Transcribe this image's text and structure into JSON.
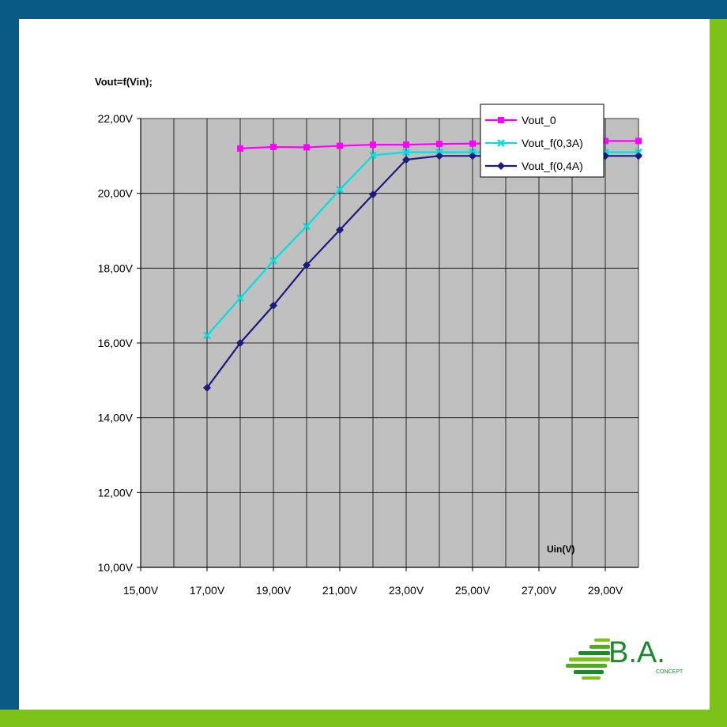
{
  "frame": {
    "left_color": "#0a5a86",
    "bottom_color": "#7cc219"
  },
  "chart_data": {
    "type": "line",
    "title": "Vout=f(Vin);",
    "xlabel": "Uin(V)",
    "ylabel": "",
    "xlim": [
      15,
      30
    ],
    "ylim": [
      10,
      22
    ],
    "x_ticks": [
      "15,00V",
      "17,00V",
      "19,00V",
      "21,00V",
      "23,00V",
      "25,00V",
      "27,00V",
      "29,00V"
    ],
    "y_ticks": [
      "10,00V",
      "12,00V",
      "14,00V",
      "16,00V",
      "18,00V",
      "20,00V",
      "22,00V"
    ],
    "grid": true,
    "plot_background": "#c0c0c0",
    "legend_position": "top-right",
    "series": [
      {
        "name": "Vout_0",
        "color": "#ff00ff",
        "marker": "square",
        "x": [
          18,
          19,
          20,
          21,
          22,
          23,
          24,
          25,
          26,
          27,
          28,
          29,
          30
        ],
        "y": [
          21.2,
          21.24,
          21.23,
          21.27,
          21.3,
          21.3,
          21.32,
          21.33,
          21.34,
          21.36,
          21.38,
          21.4,
          21.4
        ]
      },
      {
        "name": "Vout_f(0,3A)",
        "color": "#00e0e0",
        "marker": "x",
        "x": [
          17,
          18,
          19,
          20,
          21,
          22,
          23,
          24,
          25,
          26,
          27,
          28,
          29,
          30
        ],
        "y": [
          16.2,
          17.2,
          18.2,
          19.12,
          20.1,
          21.02,
          21.1,
          21.1,
          21.1,
          21.1,
          21.1,
          21.1,
          21.1,
          21.1
        ]
      },
      {
        "name": "Vout_f(0,4A)",
        "color": "#1a1a80",
        "marker": "diamond",
        "x": [
          17,
          18,
          19,
          20,
          21,
          22,
          23,
          24,
          25,
          26,
          27,
          28,
          29,
          30
        ],
        "y": [
          14.8,
          16.0,
          17.0,
          18.08,
          19.02,
          19.97,
          20.9,
          21.0,
          21.0,
          21.0,
          21.0,
          21.0,
          21.0,
          21.0
        ]
      }
    ]
  },
  "logo": {
    "text": "B.A.",
    "subtext": "CONCEPT",
    "color": "#1a8a2a",
    "stripe_colors": [
      "#7cc219",
      "#55aa22",
      "#1a8a2a"
    ]
  }
}
